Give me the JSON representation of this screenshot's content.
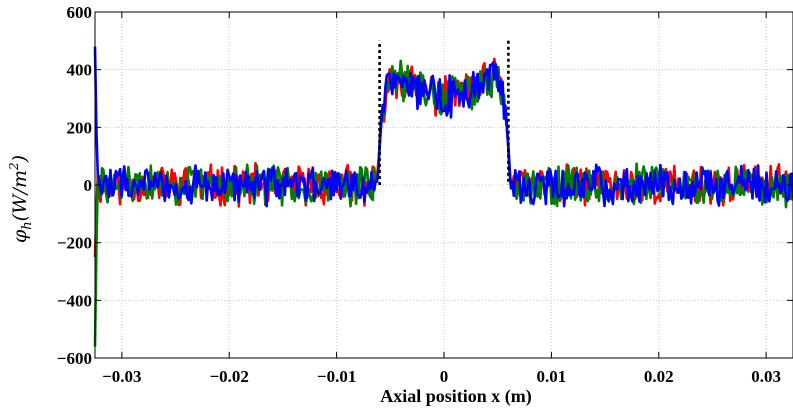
{
  "chart_data": {
    "type": "line",
    "title": "",
    "xlabel": "Axial position x (m)",
    "ylabel": {
      "symbol": "φ",
      "subscript": "h",
      "unit_open": "(W/m",
      "unit_sup": "2",
      "unit_close": ")"
    },
    "xlim": [
      -0.0325,
      0.0325
    ],
    "ylim": [
      -600,
      600
    ],
    "xticks": [
      -0.03,
      -0.02,
      -0.01,
      0,
      0.01,
      0.02,
      0.03
    ],
    "xtick_labels": [
      "−0.03",
      "−0.02",
      "−0.01",
      "0",
      "0.01",
      "0.02",
      "0.03"
    ],
    "yticks": [
      -600,
      -400,
      -200,
      0,
      200,
      400,
      600
    ],
    "ytick_labels": [
      "−600",
      "−400",
      "−200",
      "0",
      "200",
      "400",
      "600"
    ],
    "grid": true,
    "legend": "none",
    "reference": {
      "style": "black dotted",
      "x": [
        -0.006,
        -0.006,
        0.006,
        0.006
      ],
      "y": [
        0,
        500,
        500,
        0
      ],
      "profile": {
        "x": [
          -0.0325,
          -0.0062,
          -0.0058,
          -0.005,
          0,
          0.005,
          0.0058,
          0.0062,
          0.0325
        ],
        "y": [
          0,
          0,
          260,
          380,
          300,
          370,
          250,
          0,
          0
        ]
      },
      "edges": [
        -0.006,
        0.006
      ]
    },
    "series": [
      {
        "color": "#ff0000",
        "amplitude": 60,
        "seed": 11,
        "start_value": -250
      },
      {
        "color": "#007f00",
        "amplitude": 60,
        "seed": 29,
        "start_value": -560
      },
      {
        "color": "#0000ff",
        "amplitude": 60,
        "seed": 47,
        "start_value": 480
      }
    ]
  }
}
